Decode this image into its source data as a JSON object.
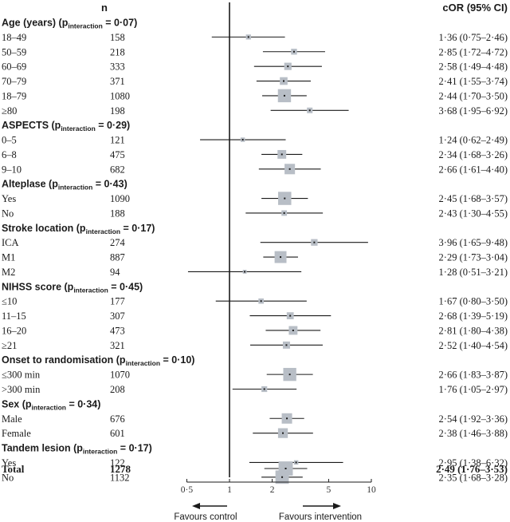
{
  "header": {
    "n_label": "n",
    "estimate_label": "cOR (95% CI)"
  },
  "chart_data": {
    "type": "forest",
    "x_scale": "log",
    "xlim": [
      0.5,
      10
    ],
    "reference_line": 1,
    "tick_values": [
      0.5,
      1,
      2,
      5,
      10
    ],
    "tick_labels": [
      "0·5",
      "1",
      "2",
      "5",
      "10"
    ],
    "left_arrow_label": "Favours control",
    "right_arrow_label": "Favours intervention",
    "colors": {
      "box": "#b8bec6",
      "line": "#1a1a1a"
    },
    "groups": [
      {
        "title": "Age (years) (p",
        "sub": "interaction",
        "p": " = 0·07)",
        "rows": [
          {
            "label": "18–49",
            "n": "158",
            "or": 1.36,
            "lo": 0.75,
            "hi": 2.46,
            "text": "1·36 (0·75–2·46)"
          },
          {
            "label": "50–59",
            "n": "218",
            "or": 2.85,
            "lo": 1.72,
            "hi": 4.72,
            "text": "2·85 (1·72–4·72)"
          },
          {
            "label": "60–69",
            "n": "333",
            "or": 2.58,
            "lo": 1.49,
            "hi": 4.48,
            "text": "2·58 (1·49–4·48)"
          },
          {
            "label": "70–79",
            "n": "371",
            "or": 2.41,
            "lo": 1.55,
            "hi": 3.74,
            "text": "2·41 (1·55–3·74)"
          },
          {
            "label": "18–79",
            "n": "1080",
            "or": 2.44,
            "lo": 1.7,
            "hi": 3.5,
            "text": "2·44 (1·70–3·50)"
          },
          {
            "label": "≥80",
            "n": "198",
            "or": 3.68,
            "lo": 1.95,
            "hi": 6.92,
            "text": "3·68 (1·95–6·92)"
          }
        ]
      },
      {
        "title": "ASPECTS (p",
        "sub": "interaction",
        "p": " = 0·29)",
        "rows": [
          {
            "label": "0–5",
            "n": "121",
            "or": 1.24,
            "lo": 0.62,
            "hi": 2.49,
            "text": "1·24 (0·62–2·49)"
          },
          {
            "label": "6–8",
            "n": "475",
            "or": 2.34,
            "lo": 1.68,
            "hi": 3.26,
            "text": "2·34 (1·68–3·26)"
          },
          {
            "label": "9–10",
            "n": "682",
            "or": 2.66,
            "lo": 1.61,
            "hi": 4.4,
            "text": "2·66 (1·61–4·40)"
          }
        ]
      },
      {
        "title": "Alteplase (p",
        "sub": "interaction",
        "p": " = 0·43)",
        "rows": [
          {
            "label": "Yes",
            "n": "1090",
            "or": 2.45,
            "lo": 1.68,
            "hi": 3.57,
            "text": "2·45 (1·68–3·57)"
          },
          {
            "label": "No",
            "n": "188",
            "or": 2.43,
            "lo": 1.3,
            "hi": 4.55,
            "text": "2·43 (1·30–4·55)"
          }
        ]
      },
      {
        "title": "Stroke location (p",
        "sub": "interaction",
        "p": " = 0·17)",
        "rows": [
          {
            "label": "ICA",
            "n": "274",
            "or": 3.96,
            "lo": 1.65,
            "hi": 9.48,
            "text": "3·96 (1·65–9·48)"
          },
          {
            "label": "M1",
            "n": "887",
            "or": 2.29,
            "lo": 1.73,
            "hi": 3.04,
            "text": "2·29 (1·73–3·04)"
          },
          {
            "label": "M2",
            "n": "94",
            "or": 1.28,
            "lo": 0.51,
            "hi": 3.21,
            "text": "1·28 (0·51–3·21)"
          }
        ]
      },
      {
        "title": "NIHSS score (p",
        "sub": "interaction",
        "p": " = 0·45)",
        "rows": [
          {
            "label": "≤10",
            "n": "177",
            "or": 1.67,
            "lo": 0.8,
            "hi": 3.5,
            "text": "1·67 (0·80–3·50)"
          },
          {
            "label": "11–15",
            "n": "307",
            "or": 2.68,
            "lo": 1.39,
            "hi": 5.19,
            "text": "2·68 (1·39–5·19)"
          },
          {
            "label": "16–20",
            "n": "473",
            "or": 2.81,
            "lo": 1.8,
            "hi": 4.38,
            "text": "2·81 (1·80–4·38)"
          },
          {
            "label": "≥21",
            "n": "321",
            "or": 2.52,
            "lo": 1.4,
            "hi": 4.54,
            "text": "2·52 (1·40–4·54)"
          }
        ]
      },
      {
        "title": "Onset to randomisation (p",
        "sub": "interaction",
        "p": " = 0·10)",
        "rows": [
          {
            "label": "≤300 min",
            "n": "1070",
            "or": 2.66,
            "lo": 1.83,
            "hi": 3.87,
            "text": "2·66 (1·83–3·87)"
          },
          {
            "label": ">300 min",
            "n": "208",
            "or": 1.76,
            "lo": 1.05,
            "hi": 2.97,
            "text": "1·76 (1·05–2·97)"
          }
        ]
      },
      {
        "title": "Sex (p",
        "sub": "interaction",
        "p": " = 0·34)",
        "rows": [
          {
            "label": "Male",
            "n": "676",
            "or": 2.54,
            "lo": 1.92,
            "hi": 3.36,
            "text": "2·54 (1·92–3·36)"
          },
          {
            "label": "Female",
            "n": "601",
            "or": 2.38,
            "lo": 1.46,
            "hi": 3.88,
            "text": "2·38 (1·46–3·88)"
          }
        ]
      },
      {
        "title": "Tandem lesion (p",
        "sub": "interaction",
        "p": " = 0·17)",
        "rows": [
          {
            "label": "Yes",
            "n": "122",
            "or": 2.95,
            "lo": 1.38,
            "hi": 6.32,
            "text": "2·95 (1·38–6·32)"
          },
          {
            "label": "No",
            "n": "1132",
            "or": 2.35,
            "lo": 1.68,
            "hi": 3.28,
            "text": "2·35 (1·68–3·28)"
          }
        ]
      }
    ],
    "total": {
      "label": "Total",
      "n": "1278",
      "or": 2.49,
      "lo": 1.76,
      "hi": 3.53,
      "text": "2·49 (1·76–3·53)"
    }
  }
}
